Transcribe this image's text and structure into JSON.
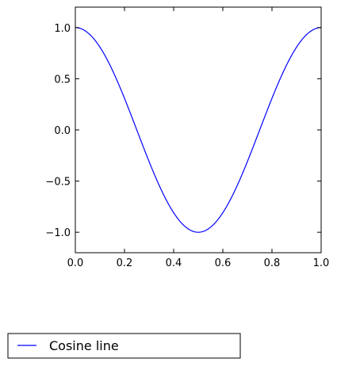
{
  "chart_data": {
    "type": "line",
    "title": "",
    "xlabel": "",
    "ylabel": "",
    "xlim": [
      0.0,
      1.0
    ],
    "ylim": [
      -1.2,
      1.2
    ],
    "xticks": [
      0.0,
      0.2,
      0.4,
      0.6,
      0.8,
      1.0
    ],
    "xtick_labels": [
      "0.0",
      "0.2",
      "0.4",
      "0.6",
      "0.8",
      "1.0"
    ],
    "yticks": [
      1.0,
      0.5,
      0.0,
      -0.5,
      -1.0
    ],
    "ytick_labels": [
      "1.0",
      "0.5",
      "0.0",
      "−0.5",
      "−1.0"
    ],
    "grid": false,
    "legend_position": "bottom-left, outside plot",
    "series": [
      {
        "name": "Cosine line",
        "color": "#0000ff",
        "function": "cos(2*pi*x)",
        "x": [
          0.0,
          0.05,
          0.1,
          0.15,
          0.2,
          0.25,
          0.3,
          0.35,
          0.4,
          0.45,
          0.5,
          0.55,
          0.6,
          0.65,
          0.7,
          0.75,
          0.8,
          0.85,
          0.9,
          0.95,
          1.0
        ],
        "y": [
          1.0,
          0.951,
          0.809,
          0.588,
          0.309,
          0.0,
          -0.309,
          -0.588,
          -0.809,
          -0.951,
          -1.0,
          -0.951,
          -0.809,
          -0.588,
          -0.309,
          0.0,
          0.309,
          0.588,
          0.809,
          0.951,
          1.0
        ]
      }
    ]
  }
}
